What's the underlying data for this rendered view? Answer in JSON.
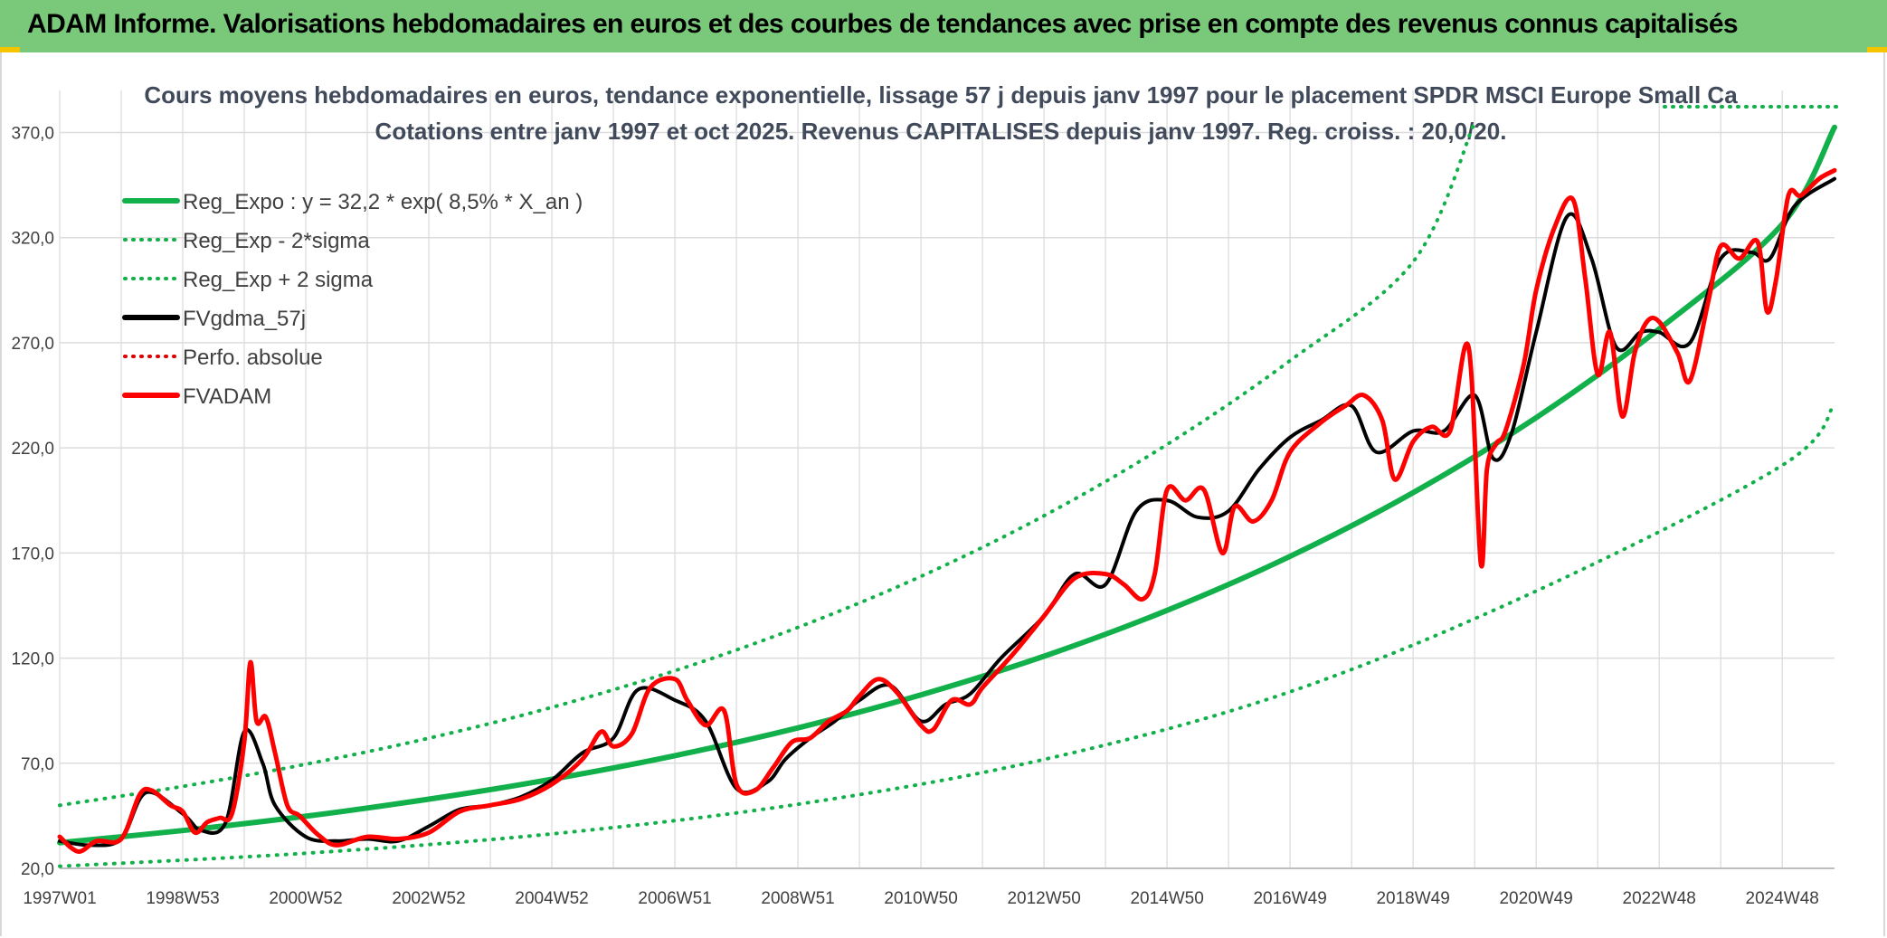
{
  "header": {
    "title": "ADAM Informe. Valorisations hebdomadaires en euros et des courbes de tendances avec prise en compte des revenus connus capitalisés"
  },
  "chart_data": {
    "type": "line",
    "title": "Cours moyens hebdomadaires en euros, tendance exponentielle, lissage 57 j depuis janv 1997 pour le placement SPDR MSCI Europe Small Ca",
    "subtitle": "Cotations entre janv 1997 et oct 2025. Revenus CAPITALISES depuis janv 1997. Reg. croiss. : 20,0/20.",
    "xlabel": "",
    "ylabel": "",
    "ylim": [
      20,
      390
    ],
    "xlim": [
      1997.0,
      2025.85
    ],
    "grid": true,
    "legend_position": "top-left",
    "y_ticks": [
      "20,0",
      "70,0",
      "120,0",
      "170,0",
      "220,0",
      "270,0",
      "320,0",
      "370,0"
    ],
    "y_tick_values": [
      20,
      70,
      120,
      170,
      220,
      270,
      320,
      370
    ],
    "x_ticks": [
      "1997W01",
      "1998W53",
      "2000W52",
      "2002W52",
      "2004W52",
      "2006W51",
      "2008W51",
      "2010W50",
      "2012W50",
      "2014W50",
      "2016W49",
      "2018W49",
      "2020W49",
      "2022W48",
      "2024W48"
    ],
    "x_tick_values": [
      1997.0,
      1999.0,
      2001.0,
      2003.0,
      2005.0,
      2007.0,
      2009.0,
      2011.0,
      2013.0,
      2015.0,
      2017.0,
      2019.0,
      2021.0,
      2023.0,
      2025.0
    ],
    "series": [
      {
        "name": "Reg_Expo : y = 32,2 * exp( 8,5% *  X_an )",
        "style": "solid",
        "color": "#12b04a",
        "width": 6,
        "x": [
          1997.0,
          1999.0,
          2001.0,
          2003.0,
          2005.0,
          2007.0,
          2009.0,
          2011.0,
          2013.0,
          2015.0,
          2017.0,
          2019.0,
          2021.0,
          2023.0,
          2025.0,
          2025.85
        ],
        "values": [
          32.2,
          38.0,
          44.8,
          52.9,
          62.4,
          73.6,
          86.8,
          102.5,
          120.9,
          142.7,
          168.4,
          198.7,
          234.4,
          276.6,
          326.4,
          372.5
        ]
      },
      {
        "name": "Reg_Exp - 2*sigma",
        "style": "dotted",
        "color": "#12b04a",
        "width": 4,
        "x": [
          1997.0,
          2001.0,
          2005.0,
          2009.0,
          2013.0,
          2017.0,
          2021.0,
          2025.0,
          2025.85
        ],
        "values": [
          21.0,
          27.2,
          36.4,
          50.5,
          71.8,
          104.0,
          151.9,
          211.7,
          241.0
        ]
      },
      {
        "name": "Reg_Exp + 2 sigma",
        "style": "dotted",
        "color": "#12b04a",
        "width": 4,
        "x": [
          1997.0,
          1999.0,
          2001.0,
          2003.0,
          2005.0,
          2007.0,
          2009.0,
          2011.0,
          2013.0,
          2015.0,
          2017.0,
          2019.0,
          2020.0
        ],
        "values": [
          50.0,
          59.0,
          69.5,
          81.9,
          96.6,
          114.0,
          134.6,
          158.9,
          187.7,
          221.6,
          261.5,
          308.5,
          375.0
        ]
      },
      {
        "name": "FVgdma_57j",
        "style": "solid",
        "color": "#000000",
        "width": 4,
        "x": [
          1997.0,
          1997.5,
          1998.0,
          1998.4,
          1999.0,
          1999.3,
          1999.7,
          2000.0,
          2000.3,
          2000.5,
          2001.0,
          2001.5,
          2002.0,
          2002.5,
          2003.0,
          2003.5,
          2004.0,
          2004.5,
          2005.0,
          2005.5,
          2006.0,
          2006.4,
          2007.0,
          2007.5,
          2008.0,
          2008.5,
          2008.8,
          2009.2,
          2009.6,
          2010.0,
          2010.5,
          2011.0,
          2011.4,
          2011.8,
          2012.3,
          2013.0,
          2013.5,
          2014.0,
          2014.5,
          2015.0,
          2015.5,
          2016.0,
          2016.5,
          2017.0,
          2017.5,
          2018.0,
          2018.4,
          2019.0,
          2019.5,
          2020.0,
          2020.3,
          2020.6,
          2021.0,
          2021.5,
          2021.9,
          2022.3,
          2022.7,
          2023.0,
          2023.5,
          2024.0,
          2024.5,
          2024.8,
          2025.2,
          2025.85
        ],
        "values": [
          33,
          31,
          34,
          56,
          46,
          38,
          42,
          85,
          70,
          50,
          35,
          33,
          34,
          33,
          40,
          48,
          50,
          54,
          62,
          75,
          82,
          105,
          100,
          90,
          58,
          61,
          72,
          82,
          90,
          100,
          107,
          90,
          98,
          103,
          120,
          140,
          160,
          155,
          190,
          195,
          187,
          190,
          210,
          225,
          233,
          240,
          218,
          228,
          228,
          245,
          215,
          227,
          275,
          330,
          310,
          268,
          275,
          275,
          270,
          310,
          313,
          310,
          335,
          348
        ]
      },
      {
        "name": "Perfo. absolue",
        "style": "dotted",
        "color": "#e00000",
        "width": 3,
        "x": [],
        "values": []
      },
      {
        "name": "FVADAM",
        "style": "solid",
        "color": "#ff0000",
        "width": 5,
        "x": [
          1997.0,
          1997.3,
          1997.6,
          1998.0,
          1998.3,
          1998.5,
          1998.8,
          1999.0,
          1999.2,
          1999.4,
          1999.6,
          1999.8,
          2000.0,
          2000.1,
          2000.2,
          2000.35,
          2000.5,
          2000.7,
          2000.9,
          2001.2,
          2001.5,
          2002.0,
          2002.5,
          2003.0,
          2003.5,
          2004.0,
          2004.5,
          2005.0,
          2005.5,
          2005.8,
          2006.0,
          2006.3,
          2006.6,
          2007.0,
          2007.2,
          2007.5,
          2007.8,
          2008.0,
          2008.3,
          2008.6,
          2008.9,
          2009.2,
          2009.5,
          2009.8,
          2010.0,
          2010.3,
          2010.6,
          2011.0,
          2011.2,
          2011.5,
          2011.8,
          2012.0,
          2012.5,
          2013.0,
          2013.5,
          2014.0,
          2014.3,
          2014.6,
          2014.8,
          2015.0,
          2015.3,
          2015.6,
          2015.9,
          2016.1,
          2016.4,
          2016.7,
          2017.0,
          2017.5,
          2017.9,
          2018.2,
          2018.5,
          2018.7,
          2019.0,
          2019.3,
          2019.6,
          2019.9,
          2020.1,
          2020.2,
          2020.35,
          2020.5,
          2020.8,
          2021.0,
          2021.3,
          2021.6,
          2021.8,
          2022.0,
          2022.2,
          2022.4,
          2022.6,
          2022.8,
          2023.0,
          2023.3,
          2023.5,
          2023.8,
          2024.0,
          2024.3,
          2024.6,
          2024.75,
          2024.9,
          2025.1,
          2025.3,
          2025.6,
          2025.85
        ],
        "values": [
          35,
          28,
          33,
          34,
          55,
          57,
          50,
          47,
          37,
          42,
          44,
          46,
          80,
          118,
          90,
          92,
          75,
          50,
          45,
          36,
          31,
          35,
          34,
          37,
          47,
          50,
          53,
          60,
          72,
          85,
          78,
          84,
          106,
          110,
          100,
          88,
          95,
          60,
          57,
          68,
          80,
          82,
          90,
          95,
          102,
          110,
          104,
          88,
          86,
          100,
          98,
          106,
          122,
          140,
          158,
          160,
          155,
          148,
          160,
          200,
          195,
          200,
          170,
          192,
          185,
          195,
          218,
          232,
          240,
          245,
          233,
          205,
          223,
          230,
          228,
          268,
          165,
          210,
          222,
          228,
          260,
          295,
          325,
          338,
          300,
          255,
          275,
          235,
          265,
          280,
          280,
          265,
          252,
          290,
          316,
          310,
          318,
          285,
          300,
          340,
          340,
          348,
          352
        ]
      }
    ]
  }
}
